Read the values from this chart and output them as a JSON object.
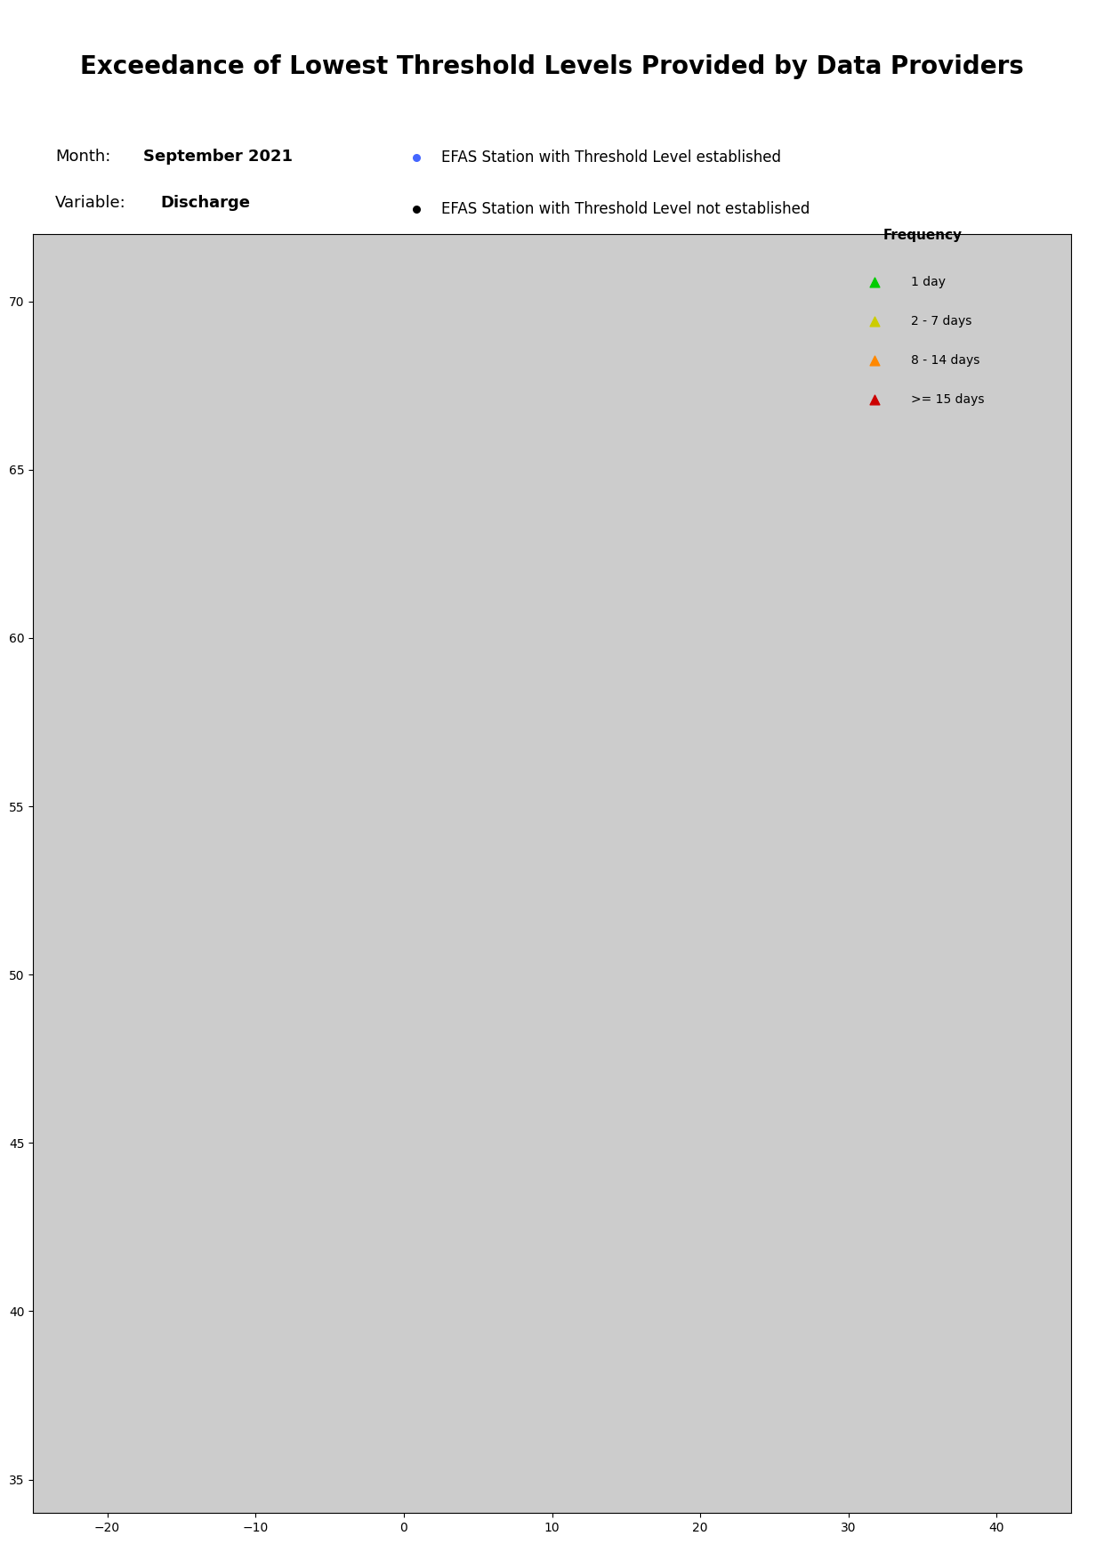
{
  "title": "Exceedance of Lowest Threshold Levels Provided by Data Providers",
  "month_label": "Month:",
  "month_value": "September 2021",
  "variable_label": "Variable:",
  "variable_value": "Discharge",
  "legend_title": "Frequency",
  "legend_items": [
    {
      "label": "1 day",
      "color": "#00cc00",
      "marker": "^"
    },
    {
      "label": "2 - 7 days",
      "color": "#cccc00",
      "marker": "^"
    },
    {
      "label": "8 - 14 days",
      "color": "#ff8800",
      "marker": "^"
    },
    {
      ">= 15 days": ">= 15 days",
      "label": ">= 15 days",
      "color": "#cc0000",
      "marker": "^"
    }
  ],
  "station_with_threshold_color": "#4466ff",
  "station_without_threshold_color": "#000000",
  "map_extent": [
    -25,
    45,
    34,
    72
  ],
  "background_color": "#ffffff",
  "map_border_color": "#000000",
  "title_fontsize": 20,
  "label_fontsize": 13,
  "figsize": [
    12.41,
    17.53
  ],
  "dpi": 100
}
